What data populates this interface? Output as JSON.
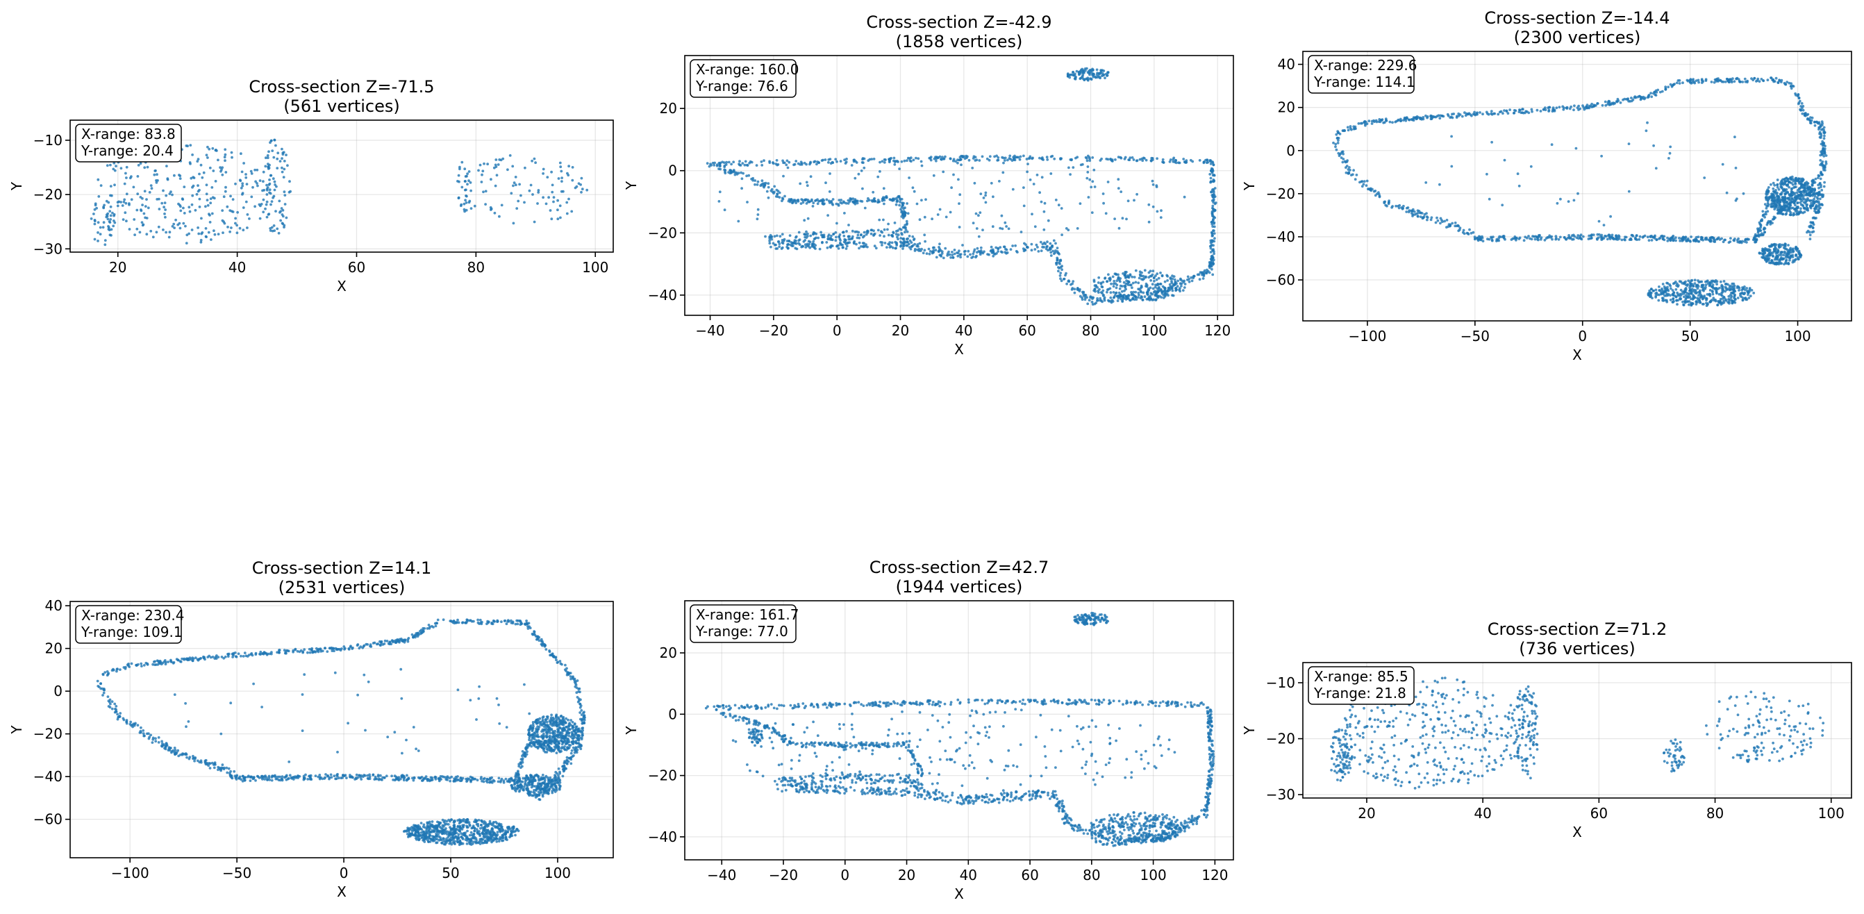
{
  "figure": {
    "point_color": "#1f77b4"
  },
  "chart_data": [
    {
      "type": "scatter",
      "title": "Cross-section Z=-71.5",
      "subtitle": "(561 vertices)",
      "xlabel": "X",
      "ylabel": "Y",
      "xlim": [
        12,
        103
      ],
      "ylim": [
        -30.6,
        -6.3
      ],
      "xticks": [
        20,
        40,
        60,
        80,
        100
      ],
      "yticks": [
        -30,
        -20,
        -10
      ],
      "grid": true,
      "info": [
        "X-range: 83.8",
        "Y-range: 20.4"
      ],
      "vertex_count": 561,
      "regions": [
        {
          "shape": "blob",
          "cx": 31,
          "cy": -19.5,
          "rx": 15,
          "ry": 9.5,
          "n": 300
        },
        {
          "shape": "blob",
          "cx": 46.5,
          "cy": -18.5,
          "rx": 2.5,
          "ry": 9,
          "n": 90
        },
        {
          "shape": "blob",
          "cx": 17.5,
          "cy": -25,
          "rx": 2,
          "ry": 4.5,
          "n": 40
        },
        {
          "shape": "blob",
          "cx": 88,
          "cy": -19,
          "rx": 11,
          "ry": 6.5,
          "n": 100
        },
        {
          "shape": "blob",
          "cx": 78,
          "cy": -18.5,
          "rx": 1.2,
          "ry": 5,
          "n": 31
        }
      ]
    },
    {
      "type": "scatter",
      "title": "Cross-section Z=-42.9",
      "subtitle": "(1858 vertices)",
      "xlabel": "X",
      "ylabel": "Y",
      "xlim": [
        -48,
        125
      ],
      "ylim": [
        -46.5,
        37
      ],
      "xticks": [
        -40,
        -20,
        0,
        20,
        40,
        60,
        80,
        100,
        120
      ],
      "yticks": [
        -40,
        -20,
        0,
        20
      ],
      "grid": true,
      "info": [
        "X-range: 160.0",
        "Y-range: 76.6"
      ],
      "vertex_count": 1858,
      "regions": [
        {
          "shape": "path",
          "pts": [
            [
              -42,
              2
            ],
            [
              0,
              3
            ],
            [
              40,
              4
            ],
            [
              80,
              4
            ],
            [
              118,
              3
            ]
          ],
          "n": 300,
          "j": 0.8
        },
        {
          "shape": "path",
          "pts": [
            [
              118,
              3
            ],
            [
              119,
              -12
            ],
            [
              118,
              -32
            ]
          ],
          "n": 130,
          "j": 0.7
        },
        {
          "shape": "path",
          "pts": [
            [
              -38,
              1
            ],
            [
              -25,
              -3
            ],
            [
              -20,
              -7
            ],
            [
              -15,
              -10
            ]
          ],
          "n": 70,
          "j": 1
        },
        {
          "shape": "path",
          "pts": [
            [
              -15,
              -10
            ],
            [
              0,
              -10
            ],
            [
              20,
              -9
            ],
            [
              22,
              -20
            ]
          ],
          "n": 160,
          "j": 0.8
        },
        {
          "shape": "path",
          "pts": [
            [
              -22,
              -22
            ],
            [
              0,
              -21
            ],
            [
              20,
              -20
            ],
            [
              23,
              -24
            ]
          ],
          "n": 150,
          "j": 1.5
        },
        {
          "shape": "path",
          "pts": [
            [
              -20,
              -24
            ],
            [
              5,
              -24
            ],
            [
              23,
              -24
            ]
          ],
          "n": 120,
          "j": 1.2
        },
        {
          "shape": "path",
          "pts": [
            [
              22,
              -24
            ],
            [
              35,
              -27
            ],
            [
              50,
              -26
            ],
            [
              68,
              -24
            ]
          ],
          "n": 150,
          "j": 1.5
        },
        {
          "shape": "path",
          "pts": [
            [
              68,
              -24
            ],
            [
              72,
              -35
            ],
            [
              80,
              -42
            ],
            [
              100,
              -40
            ],
            [
              118,
              -32
            ]
          ],
          "n": 200,
          "j": 1.2
        },
        {
          "shape": "blob",
          "cx": 95,
          "cy": -37,
          "rx": 15,
          "ry": 5,
          "n": 270
        },
        {
          "shape": "blob",
          "cx": 79,
          "cy": 31,
          "rx": 7,
          "ry": 2,
          "n": 100
        },
        {
          "shape": "blob",
          "cx": 35,
          "cy": -10,
          "rx": 75,
          "ry": 15,
          "n": 208
        }
      ]
    },
    {
      "type": "scatter",
      "title": "Cross-section Z=-14.4",
      "subtitle": "(2300 vertices)",
      "xlabel": "X",
      "ylabel": "Y",
      "xlim": [
        -130,
        125
      ],
      "ylim": [
        -79,
        46
      ],
      "xticks": [
        -100,
        -50,
        0,
        50,
        100
      ],
      "yticks": [
        -60,
        -40,
        -20,
        0,
        20,
        40
      ],
      "grid": true,
      "info": [
        "X-range: 229.6",
        "Y-range: 114.1"
      ],
      "vertex_count": 2300,
      "regions": [
        {
          "shape": "path",
          "pts": [
            [
              -115,
              8
            ],
            [
              -100,
              13
            ],
            [
              -50,
              17
            ],
            [
              0,
              20
            ],
            [
              30,
              25
            ],
            [
              45,
              32
            ],
            [
              90,
              33
            ],
            [
              98,
              30
            ],
            [
              103,
              16
            ]
          ],
          "n": 420,
          "j": 1
        },
        {
          "shape": "path",
          "pts": [
            [
              103,
              16
            ],
            [
              111,
              12
            ],
            [
              112,
              -5
            ],
            [
              110,
              -25
            ],
            [
              105,
              -40
            ]
          ],
          "n": 170,
          "j": 1.5
        },
        {
          "shape": "path",
          "pts": [
            [
              -115,
              6
            ],
            [
              -110,
              -8
            ],
            [
              -90,
              -25
            ],
            [
              -60,
              -35
            ],
            [
              -50,
              -40
            ]
          ],
          "n": 150,
          "j": 1.5
        },
        {
          "shape": "path",
          "pts": [
            [
              -50,
              -41
            ],
            [
              0,
              -40
            ],
            [
              50,
              -41
            ],
            [
              80,
              -42
            ]
          ],
          "n": 300,
          "j": 1.2
        },
        {
          "shape": "path",
          "pts": [
            [
              80,
              -42
            ],
            [
              86,
              -25
            ],
            [
              100,
              -20
            ],
            [
              110,
              -20
            ]
          ],
          "n": 100,
          "j": 1
        },
        {
          "shape": "path",
          "pts": [
            [
              82,
              -40
            ],
            [
              90,
              -30
            ],
            [
              110,
              -12
            ]
          ],
          "n": 90,
          "j": 1
        },
        {
          "shape": "blob",
          "cx": 97,
          "cy": -21,
          "rx": 12,
          "ry": 9,
          "n": 400
        },
        {
          "shape": "blob",
          "cx": 92,
          "cy": -48,
          "rx": 10,
          "ry": 5,
          "n": 210
        },
        {
          "shape": "blob",
          "cx": 55,
          "cy": -66,
          "rx": 25,
          "ry": 6,
          "n": 420
        },
        {
          "shape": "blob",
          "cx": 0,
          "cy": -10,
          "rx": 100,
          "ry": 25,
          "n": 40
        }
      ]
    },
    {
      "type": "scatter",
      "title": "Cross-section Z=14.1",
      "subtitle": "(2531 vertices)",
      "xlabel": "X",
      "ylabel": "Y",
      "xlim": [
        -128,
        126
      ],
      "ylim": [
        -78,
        42
      ],
      "xticks": [
        -100,
        -50,
        0,
        50,
        100
      ],
      "yticks": [
        -60,
        -40,
        -20,
        0,
        20,
        40
      ],
      "grid": true,
      "info": [
        "X-range: 230.4",
        "Y-range: 109.1"
      ],
      "vertex_count": 2531,
      "regions": [
        {
          "shape": "path",
          "pts": [
            [
              -115,
              7
            ],
            [
              -100,
              12
            ],
            [
              -50,
              17
            ],
            [
              0,
              20
            ],
            [
              30,
              24
            ],
            [
              45,
              33
            ],
            [
              85,
              32
            ],
            [
              95,
              20
            ],
            [
              108,
              5
            ],
            [
              112,
              -10
            ]
          ],
          "n": 470,
          "j": 1
        },
        {
          "shape": "path",
          "pts": [
            [
              112,
              -10
            ],
            [
              110,
              -25
            ],
            [
              100,
              -40
            ],
            [
              90,
              -50
            ]
          ],
          "n": 150,
          "j": 1.5
        },
        {
          "shape": "path",
          "pts": [
            [
              -115,
              4
            ],
            [
              -105,
              -12
            ],
            [
              -80,
              -28
            ],
            [
              -55,
              -37
            ],
            [
              -50,
              -41
            ]
          ],
          "n": 170,
          "j": 1.5
        },
        {
          "shape": "path",
          "pts": [
            [
              -50,
              -41
            ],
            [
              0,
              -40
            ],
            [
              50,
              -41
            ],
            [
              80,
              -42
            ]
          ],
          "n": 320,
          "j": 1.2
        },
        {
          "shape": "path",
          "pts": [
            [
              80,
              -42
            ],
            [
              86,
              -25
            ],
            [
              105,
              -22
            ]
          ],
          "n": 90,
          "j": 1
        },
        {
          "shape": "blob",
          "cx": 98,
          "cy": -20,
          "rx": 12,
          "ry": 9,
          "n": 420
        },
        {
          "shape": "blob",
          "cx": 90,
          "cy": -44,
          "rx": 12,
          "ry": 5,
          "n": 230
        },
        {
          "shape": "blob",
          "cx": 55,
          "cy": -66,
          "rx": 27,
          "ry": 6,
          "n": 640
        },
        {
          "shape": "blob",
          "cx": 0,
          "cy": -10,
          "rx": 100,
          "ry": 25,
          "n": 41
        }
      ]
    },
    {
      "type": "scatter",
      "title": "Cross-section Z=42.7",
      "subtitle": "(1944 vertices)",
      "xlabel": "X",
      "ylabel": "Y",
      "xlim": [
        -52,
        126
      ],
      "ylim": [
        -47.5,
        37
      ],
      "xticks": [
        -40,
        -20,
        0,
        20,
        40,
        60,
        80,
        100,
        120
      ],
      "yticks": [
        -40,
        -20,
        0,
        20
      ],
      "grid": true,
      "info": [
        "X-range: 161.7",
        "Y-range: 77.0"
      ],
      "vertex_count": 1944,
      "regions": [
        {
          "shape": "path",
          "pts": [
            [
              -45,
              2
            ],
            [
              0,
              3
            ],
            [
              40,
              4
            ],
            [
              80,
              4
            ],
            [
              118,
              3
            ]
          ],
          "n": 300,
          "j": 0.8
        },
        {
          "shape": "path",
          "pts": [
            [
              118,
              3
            ],
            [
              119,
              -15
            ],
            [
              117,
              -32
            ]
          ],
          "n": 130,
          "j": 0.7
        },
        {
          "shape": "path",
          "pts": [
            [
              -40,
              0
            ],
            [
              -25,
              -4
            ],
            [
              -17,
              -10
            ],
            [
              0,
              -10
            ],
            [
              20,
              -10
            ],
            [
              25,
              -20
            ]
          ],
          "n": 200,
          "j": 0.8
        },
        {
          "shape": "blob",
          "cx": -29,
          "cy": -7,
          "rx": 2.5,
          "ry": 2.5,
          "n": 40
        },
        {
          "shape": "blob",
          "cx": -20,
          "cy": -8,
          "rx": 1,
          "ry": 1.5,
          "n": 12
        },
        {
          "shape": "path",
          "pts": [
            [
              -22,
              -22
            ],
            [
              0,
              -21
            ],
            [
              20,
              -21
            ],
            [
              25,
              -24
            ]
          ],
          "n": 150,
          "j": 1.5
        },
        {
          "shape": "path",
          "pts": [
            [
              -22,
              -24
            ],
            [
              10,
              -25
            ],
            [
              25,
              -26
            ]
          ],
          "n": 120,
          "j": 1.2
        },
        {
          "shape": "path",
          "pts": [
            [
              25,
              -26
            ],
            [
              40,
              -28
            ],
            [
              55,
              -27
            ],
            [
              68,
              -26
            ]
          ],
          "n": 150,
          "j": 1.5
        },
        {
          "shape": "path",
          "pts": [
            [
              68,
              -26
            ],
            [
              73,
              -36
            ],
            [
              85,
              -42
            ],
            [
              105,
              -40
            ],
            [
              117,
              -32
            ]
          ],
          "n": 220,
          "j": 1.2
        },
        {
          "shape": "blob",
          "cx": 95,
          "cy": -37,
          "rx": 16,
          "ry": 5,
          "n": 300
        },
        {
          "shape": "blob",
          "cx": 80,
          "cy": 31,
          "rx": 6,
          "ry": 2,
          "n": 100
        },
        {
          "shape": "blob",
          "cx": 35,
          "cy": -12,
          "rx": 75,
          "ry": 15,
          "n": 222
        }
      ]
    },
    {
      "type": "scatter",
      "title": "Cross-section Z=71.2",
      "subtitle": "(736 vertices)",
      "xlabel": "X",
      "ylabel": "Y",
      "xlim": [
        9,
        103.5
      ],
      "ylim": [
        -30.6,
        -6.4
      ],
      "xticks": [
        20,
        40,
        60,
        80,
        100
      ],
      "yticks": [
        -30,
        -20,
        -10
      ],
      "grid": true,
      "info": [
        "X-range: 85.5",
        "Y-range: 21.8"
      ],
      "vertex_count": 736,
      "regions": [
        {
          "shape": "blob",
          "cx": 31,
          "cy": -19,
          "rx": 16,
          "ry": 10,
          "n": 360
        },
        {
          "shape": "blob",
          "cx": 47.5,
          "cy": -19,
          "rx": 2,
          "ry": 9.5,
          "n": 110
        },
        {
          "shape": "blob",
          "cx": 15.5,
          "cy": -23,
          "rx": 2,
          "ry": 5,
          "n": 80
        },
        {
          "shape": "blob",
          "cx": 88,
          "cy": -18,
          "rx": 11,
          "ry": 6.5,
          "n": 140
        },
        {
          "shape": "blob",
          "cx": 73,
          "cy": -23,
          "rx": 2,
          "ry": 3,
          "n": 46
        }
      ]
    }
  ]
}
